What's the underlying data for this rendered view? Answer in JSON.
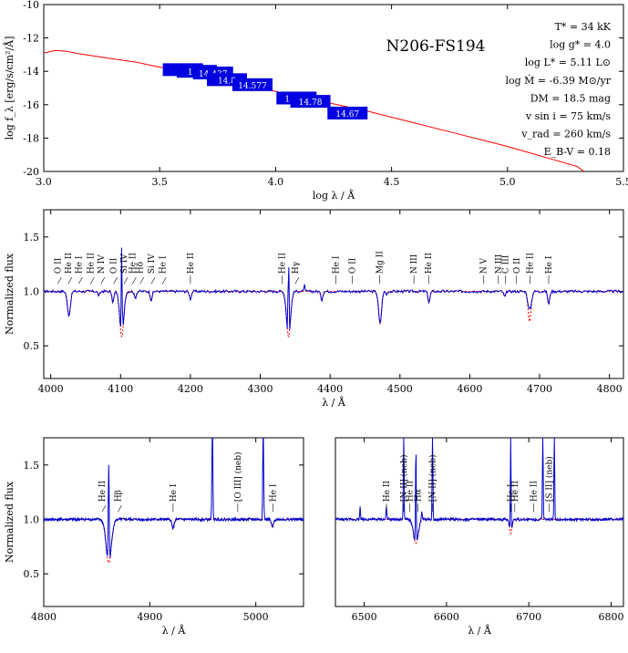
{
  "star": "N206-FS194",
  "params": [
    "T* = 34 kK",
    "log g* = 4.0",
    "log L* = 5.11 L⊙",
    "log Ṁ = -6.39 M⊙/yr",
    "DM = 18.5 mag",
    "v sin i = 75 km/s",
    "v_rad = 260 km/s",
    "E_B-V = 0.18"
  ],
  "colors": {
    "model": "#ff0000",
    "observed": "#0000cc",
    "photometry": "#0000e0"
  },
  "chart_data": [
    {
      "type": "line",
      "panel": "sed",
      "xlabel": "log λ / Å",
      "ylabel": "log f_λ [erg/s/cm²/Å]",
      "xlim": [
        3.0,
        5.5
      ],
      "ylim": [
        -20,
        -10
      ],
      "xticks": [
        "3.0",
        "3.5",
        "4.0",
        "4.5",
        "5.0",
        "5.5"
      ],
      "yticks": [
        "-10",
        "-12",
        "-14",
        "-16",
        "-18",
        "-20"
      ],
      "model_sed": {
        "x": [
          3.0,
          3.05,
          3.1,
          3.15,
          3.2,
          3.3,
          3.4,
          3.5,
          3.6,
          3.7,
          3.8,
          3.9,
          4.0,
          4.1,
          4.2,
          4.3,
          4.4,
          4.5,
          4.6,
          4.7,
          4.8,
          4.9,
          5.0,
          5.1,
          5.2,
          5.3,
          5.33
        ],
        "y": [
          -12.9,
          -12.8,
          -12.85,
          -12.95,
          -13.0,
          -13.2,
          -13.45,
          -13.75,
          -14.0,
          -14.3,
          -14.6,
          -14.9,
          -15.2,
          -15.5,
          -15.8,
          -16.1,
          -16.4,
          -16.75,
          -17.1,
          -17.45,
          -17.8,
          -18.15,
          -18.5,
          -18.9,
          -19.3,
          -19.7,
          -20.0
        ]
      },
      "photometry": [
        {
          "x": 3.6,
          "y": -13.9,
          "label": "13"
        },
        {
          "x": 3.66,
          "y": -14.0,
          "label": "14.5"
        },
        {
          "x": 3.73,
          "y": -14.1,
          "label": "14.437"
        },
        {
          "x": 3.79,
          "y": -14.5,
          "label": "14.8"
        },
        {
          "x": 3.9,
          "y": -14.8,
          "label": "14.577"
        },
        {
          "x": 4.09,
          "y": -15.6,
          "label": "14.87"
        },
        {
          "x": 4.15,
          "y": -15.8,
          "label": "14.78"
        },
        {
          "x": 4.31,
          "y": -16.5,
          "label": "14.67"
        }
      ]
    },
    {
      "type": "line",
      "panel": "blue",
      "xlabel": "λ / Å",
      "ylabel": "Normalized flux",
      "xlim": [
        3990,
        4820
      ],
      "ylim": [
        0.2,
        1.75
      ],
      "xticks": [
        "4000",
        "4100",
        "4200",
        "4300",
        "4400",
        "4500",
        "4600",
        "4700",
        "4800"
      ],
      "yticks": [
        "0.5",
        "1.0",
        "1.5"
      ],
      "absorption": [
        {
          "c": 4026,
          "d": 0.22,
          "w": 3
        },
        {
          "c": 4069,
          "d": 0.04,
          "w": 2
        },
        {
          "c": 4089,
          "d": 0.1,
          "w": 2
        },
        {
          "c": 4101.7,
          "d": 0.42,
          "w": 4
        },
        {
          "c": 4121,
          "d": 0.06,
          "w": 2
        },
        {
          "c": 4143.8,
          "d": 0.08,
          "w": 2
        },
        {
          "c": 4200,
          "d": 0.07,
          "w": 2
        },
        {
          "c": 4340.5,
          "d": 0.42,
          "w": 4
        },
        {
          "c": 4388,
          "d": 0.08,
          "w": 2
        },
        {
          "c": 4471.5,
          "d": 0.3,
          "w": 3
        },
        {
          "c": 4481,
          "d": 0.03,
          "w": 1.5
        },
        {
          "c": 4541.6,
          "d": 0.1,
          "w": 2
        },
        {
          "c": 4650,
          "d": 0.05,
          "w": 2
        },
        {
          "c": 4685.7,
          "d": 0.28,
          "w": 3
        },
        {
          "c": 4713,
          "d": 0.12,
          "w": 2
        }
      ],
      "emission": [
        {
          "c": 4101.7,
          "h": 0.9,
          "w": 0.8
        },
        {
          "c": 4340.5,
          "h": 0.9,
          "w": 0.8
        },
        {
          "c": 4363,
          "h": 0.08,
          "w": 0.8
        },
        {
          "c": 4685.7,
          "h": 0.12,
          "w": 2
        }
      ],
      "labels": [
        {
          "t": "O II",
          "x": 4010,
          "tick": "ang"
        },
        {
          "t": "He II",
          "x": 4025,
          "tick": "ang"
        },
        {
          "t": "He I",
          "x": 4040,
          "tick": "ang"
        },
        {
          "t": "He II",
          "x": 4057,
          "tick": "ang"
        },
        {
          "t": "N IV",
          "x": 4072,
          "tick": "ang"
        },
        {
          "t": "O II",
          "x": 4090,
          "tick": "ang"
        },
        {
          "t": "Si IV",
          "x": 4105,
          "tick": "ang"
        },
        {
          "t": "He II",
          "x": 4117,
          "tick": "ang"
        },
        {
          "t": "Hδ",
          "x": 4128,
          "tick": "ang"
        },
        {
          "t": "Si IV",
          "x": 4144,
          "tick": "ang"
        },
        {
          "t": "He I",
          "x": 4160,
          "tick": "ang"
        },
        {
          "t": "He II",
          "x": 4200,
          "tick": "v"
        },
        {
          "t": "He II",
          "x": 4331,
          "tick": "v"
        },
        {
          "t": "Hγ",
          "x": 4350,
          "tick": "ang"
        },
        {
          "t": "He I",
          "x": 4408,
          "tick": "v"
        },
        {
          "t": "O II",
          "x": 4432,
          "tick": "v"
        },
        {
          "t": "Mg II",
          "x": 4471,
          "tick": "v"
        },
        {
          "t": "N III",
          "x": 4520,
          "tick": "v"
        },
        {
          "t": "He II",
          "x": 4541,
          "tick": "v"
        },
        {
          "t": "N V",
          "x": 4620,
          "tick": "v"
        },
        {
          "t": "N III",
          "x": 4641,
          "tick": "v"
        },
        {
          "t": "C III",
          "x": 4651,
          "tick": "v"
        },
        {
          "t": "O II",
          "x": 4667,
          "tick": "v"
        },
        {
          "t": "He II",
          "x": 4686,
          "tick": "v"
        },
        {
          "t": "He I",
          "x": 4713,
          "tick": "v"
        }
      ]
    },
    {
      "type": "line",
      "panel": "hbeta",
      "xlabel": "λ / Å",
      "ylabel": "Normalized flux",
      "xlim": [
        4800,
        5045
      ],
      "ylim": [
        0.2,
        1.75
      ],
      "xticks": [
        "4800",
        "4900",
        "5000"
      ],
      "yticks": [
        "0.5",
        "1.0",
        "1.5"
      ],
      "absorption": [
        {
          "c": 4861.3,
          "d": 0.4,
          "w": 3.5
        },
        {
          "c": 4921.9,
          "d": 0.08,
          "w": 1.5
        },
        {
          "c": 5015.7,
          "d": 0.07,
          "w": 1.5
        }
      ],
      "emission": [
        {
          "c": 4861.3,
          "h": 0.9,
          "w": 0.6
        },
        {
          "c": 4959,
          "h": 0.9,
          "w": 0.6
        },
        {
          "c": 5007,
          "h": 0.9,
          "w": 0.6
        }
      ],
      "labels": [
        {
          "t": "He II",
          "x": 4855,
          "tick": "ang"
        },
        {
          "t": "Hβ",
          "x": 4870,
          "tick": "ang"
        },
        {
          "t": "He I",
          "x": 4922,
          "tick": "v"
        },
        {
          "t": "[O III] (neb)",
          "x": 4983,
          "tick": "v"
        },
        {
          "t": "He I",
          "x": 5016,
          "tick": "v"
        }
      ]
    },
    {
      "type": "line",
      "panel": "halpha",
      "xlabel": "λ / Å",
      "ylabel": "",
      "xlim": [
        6465,
        6815
      ],
      "ylim": [
        0.2,
        1.75
      ],
      "xticks": [
        "6500",
        "6600",
        "6700",
        "6800"
      ],
      "yticks": [],
      "absorption": [
        {
          "c": 6562.8,
          "d": 0.22,
          "w": 4
        },
        {
          "c": 6678,
          "d": 0.13,
          "w": 2
        }
      ],
      "emission": [
        {
          "c": 6548,
          "h": 0.9,
          "w": 0.6
        },
        {
          "c": 6562.8,
          "h": 0.9,
          "w": 0.6
        },
        {
          "c": 6583,
          "h": 0.9,
          "w": 0.6
        },
        {
          "c": 6678,
          "h": 0.9,
          "w": 0.6
        },
        {
          "c": 6717,
          "h": 0.9,
          "w": 0.6
        },
        {
          "c": 6731,
          "h": 0.9,
          "w": 0.6
        },
        {
          "c": 6527,
          "h": 0.12,
          "w": 0.7
        },
        {
          "c": 6495,
          "h": 0.12,
          "w": 0.6
        },
        {
          "c": 6570,
          "h": 0.08,
          "w": 0.8
        }
      ],
      "labels": [
        {
          "t": "He II",
          "x": 6527,
          "tick": "v"
        },
        {
          "t": "[N II] (neb)",
          "x": 6548,
          "tick": "v"
        },
        {
          "t": "He II",
          "x": 6555,
          "tick": "v"
        },
        {
          "t": "Hα",
          "x": 6565,
          "tick": "v"
        },
        {
          "t": "[N II] (neb)",
          "x": 6583,
          "tick": "v"
        },
        {
          "t": "He I",
          "x": 6678,
          "tick": "v"
        },
        {
          "t": "He II",
          "x": 6683,
          "tick": "v"
        },
        {
          "t": "He II",
          "x": 6706,
          "tick": "v"
        },
        {
          "t": "[S II] (neb)",
          "x": 6725,
          "tick": "v"
        }
      ]
    }
  ]
}
